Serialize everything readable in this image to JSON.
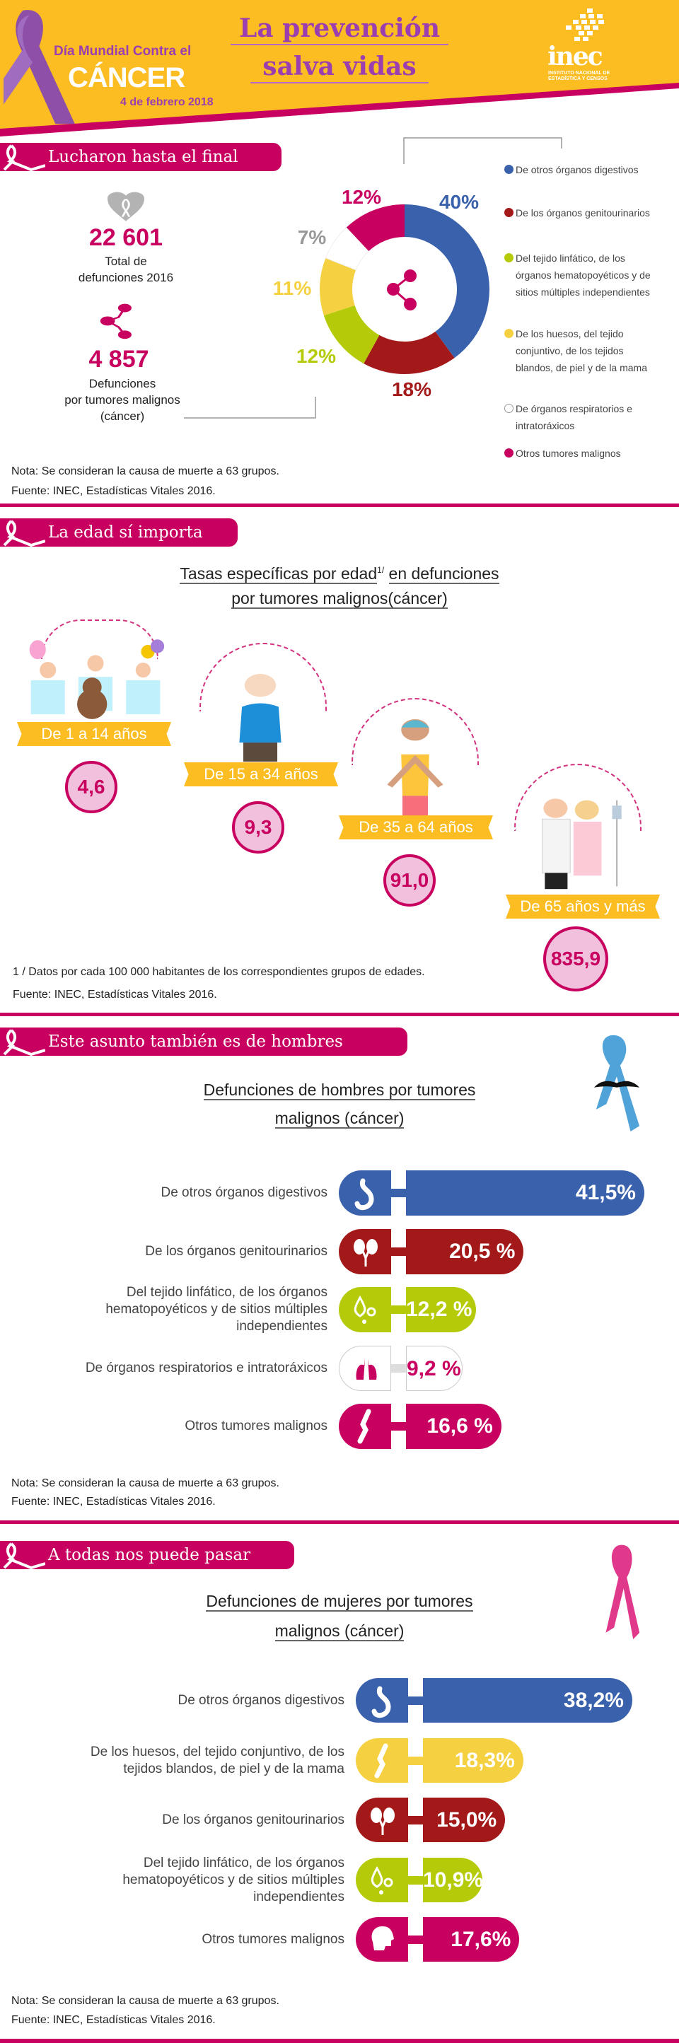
{
  "header": {
    "event_line1": "Día Mundial Contra el",
    "event_line2": "CÁNCER",
    "event_date": "4 de febrero 2018",
    "title_line1": "La prevención",
    "title_line2": "salva vidas",
    "logo_text": "inec",
    "logo_sub1": "INSTITUTO NACIONAL DE",
    "logo_sub2": "ESTADÍSTICA Y CENSOS"
  },
  "section1": {
    "banner": "Lucharon hasta el final",
    "total_value": "22 601",
    "total_label1": "Total de",
    "total_label2": "defunciones 2016",
    "cancer_value": "4 857",
    "cancer_label1": "Defunciones",
    "cancer_label2": "por tumores malignos",
    "cancer_label3": "(cáncer)",
    "note": "Nota: Se consideran la causa de muerte a 63 grupos.",
    "source": "Fuente: INEC, Estadísticas Vitales 2016."
  },
  "section2": {
    "banner": "La edad sí importa",
    "title_line1a": "Tasas específicas por edad",
    "title_sup": "1/",
    "title_line1b": "en defunciones",
    "title_line2": "por tumores malignos(cáncer)",
    "groups": [
      {
        "label": "De 1 a 14 años",
        "value": "4,6"
      },
      {
        "label": "De 15 a 34 años",
        "value": "9,3"
      },
      {
        "label": "De 35 a 64 años",
        "value": "91,0"
      },
      {
        "label": "De 65 años y más",
        "value": "835,9"
      }
    ],
    "footnote": "1 / Datos por cada 100 000 habitantes de los correspondientes grupos de edades.",
    "source": "Fuente: INEC, Estadísticas Vitales 2016."
  },
  "section3": {
    "banner": "Este asunto también es de hombres",
    "title_line1": "Defunciones de hombres por tumores",
    "title_line2": "malignos (cáncer)",
    "note": "Nota: Se consideran la causa de muerte a 63 grupos.",
    "source": "Fuente: INEC, Estadísticas Vitales 2016."
  },
  "section4": {
    "banner": "A todas nos puede pasar",
    "title_line1": "Defunciones de mujeres por tumores",
    "title_line2": "malignos (cáncer)",
    "note": "Nota: Se consideran la causa de muerte a 63 grupos.",
    "source": "Fuente: INEC, Estadísticas Vitales 2016."
  },
  "chart_data": [
    {
      "type": "pie",
      "categories": [
        "De otros órganos digestivos",
        "De los órganos genitourinarios",
        "Del tejido linfático, de los órganos hematopoyéticos y de sitios múltiples independientes",
        "De los huesos, del tejido conjuntivo, de los tejidos blandos, de piel y de la mama",
        "De órganos respiratorios e intratoráxicos",
        "Otros tumores malignos"
      ],
      "values": [
        40,
        18,
        12,
        11,
        7,
        12
      ],
      "labels": [
        "40%",
        "18%",
        "12%",
        "11%",
        "7%",
        "12%"
      ],
      "colors": [
        "#3a62ac",
        "#a31919",
        "#b5cb0a",
        "#f5d142",
        "#ffffff",
        "#c8005f"
      ],
      "label_colors": [
        "#3a62ac",
        "#a31919",
        "#b5cb0a",
        "#f5d142",
        "#999999",
        "#c8005f"
      ],
      "legend": "right"
    },
    {
      "type": "bar",
      "title": "Defunciones de hombres por tumores malignos (cáncer)",
      "categories": [
        "De otros órganos digestivos",
        "De los órganos genitourinarios",
        "Del tejido linfático, de los órganos hematopoyéticos y de sitios múltiples independientes",
        "De órganos respiratorios e intratoráxicos",
        "Otros tumores malignos"
      ],
      "values": [
        41.5,
        20.5,
        12.2,
        9.2,
        16.6
      ],
      "labels": [
        "41,5%",
        "20,5 %",
        "12,2 %",
        "9,2 %",
        "16,6 %"
      ],
      "colors": [
        "#3a62ac",
        "#a31919",
        "#b5cb0a",
        "#ffffff",
        "#c8005f"
      ],
      "icons": [
        "stomach-icon",
        "kidneys-icon",
        "blood-drops-icon",
        "lungs-icon",
        "bone-joint-icon"
      ]
    },
    {
      "type": "bar",
      "title": "Defunciones de mujeres por tumores malignos (cáncer)",
      "categories": [
        "De otros órganos digestivos",
        "De los huesos, del tejido conjuntivo, de los tejidos blandos, de piel y de la mama",
        "De los órganos genitourinarios",
        "Del tejido linfático, de los órganos hematopoyéticos y de sitios múltiples independientes",
        "Otros tumores malignos"
      ],
      "values": [
        38.2,
        18.3,
        15.0,
        10.9,
        17.6
      ],
      "labels": [
        "38,2%",
        "18,3%",
        "15,0%",
        "10,9%",
        "17,6%"
      ],
      "colors": [
        "#3a62ac",
        "#f5d142",
        "#a31919",
        "#b5cb0a",
        "#c8005f"
      ],
      "icons": [
        "stomach-icon",
        "bone-joint-icon",
        "kidneys-icon",
        "blood-drops-icon",
        "head-icon"
      ]
    }
  ]
}
